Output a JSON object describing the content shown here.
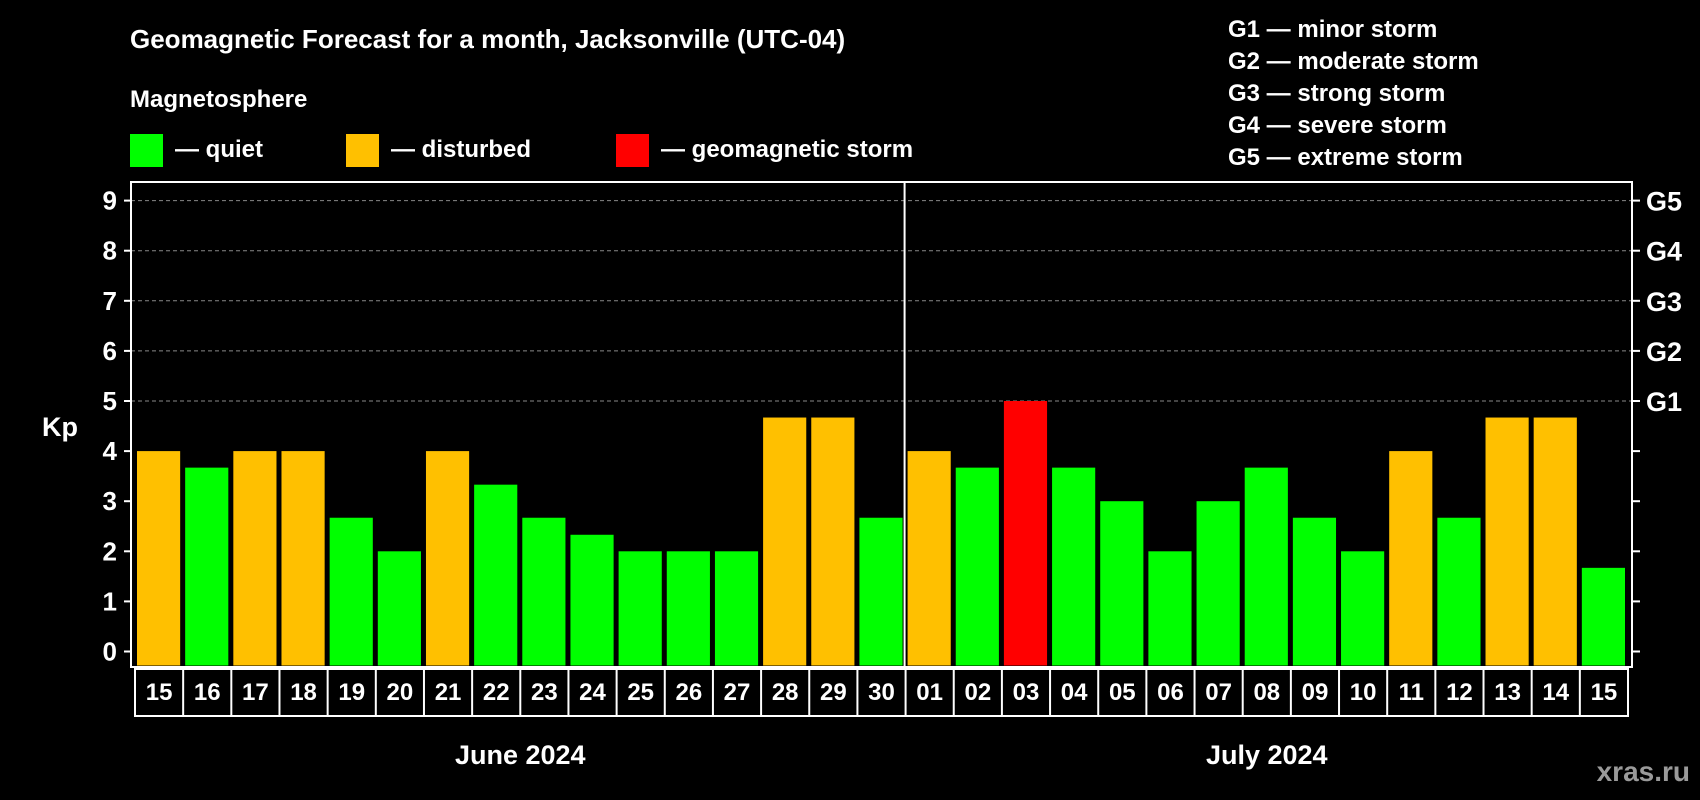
{
  "header": {
    "title": "Geomagnetic Forecast for a month, Jacksonville (UTC-04)",
    "subtitle": "Magnetosphere",
    "legend": [
      {
        "label": "— quiet",
        "color": "#00ff00"
      },
      {
        "label": "— disturbed",
        "color": "#ffc000"
      },
      {
        "label": "— geomagnetic storm",
        "color": "#ff0000"
      }
    ],
    "storm_scale": [
      "G1 — minor storm",
      "G2 — moderate storm",
      "G3 — strong storm",
      "G4 — severe storm",
      "G5 — extreme storm"
    ]
  },
  "watermark": "xras.ru",
  "chart_data": {
    "type": "bar",
    "title": "Geomagnetic Forecast for a month, Jacksonville (UTC-04)",
    "ylabel": "Kp",
    "ylim": [
      0,
      9
    ],
    "yticks": [
      "0",
      "1",
      "2",
      "3",
      "4",
      "5",
      "6",
      "7",
      "8",
      "9"
    ],
    "right_ticks": [
      {
        "kp": 5,
        "label": "G1"
      },
      {
        "kp": 6,
        "label": "G2"
      },
      {
        "kp": 7,
        "label": "G3"
      },
      {
        "kp": 8,
        "label": "G4"
      },
      {
        "kp": 9,
        "label": "G5"
      }
    ],
    "grid": "dashed horizontal at Kp 5-9",
    "months": [
      {
        "label": "June 2024",
        "count": 16
      },
      {
        "label": "July 2024",
        "count": 15
      }
    ],
    "categories": [
      "15",
      "16",
      "17",
      "18",
      "19",
      "20",
      "21",
      "22",
      "23",
      "24",
      "25",
      "26",
      "27",
      "28",
      "29",
      "30",
      "01",
      "02",
      "03",
      "04",
      "05",
      "06",
      "07",
      "08",
      "09",
      "10",
      "11",
      "12",
      "13",
      "14",
      "15"
    ],
    "values": [
      4,
      3.67,
      4,
      4,
      2.67,
      2,
      4,
      3.33,
      2.67,
      2.33,
      2,
      2,
      2,
      4.67,
      4.67,
      2.67,
      4,
      3.67,
      5,
      3.67,
      3,
      2,
      3,
      3.67,
      2.67,
      2,
      4,
      2.67,
      4.67,
      4.67,
      1.67
    ],
    "status": [
      "disturbed",
      "quiet",
      "disturbed",
      "disturbed",
      "quiet",
      "quiet",
      "disturbed",
      "quiet",
      "quiet",
      "quiet",
      "quiet",
      "quiet",
      "quiet",
      "disturbed",
      "disturbed",
      "quiet",
      "disturbed",
      "quiet",
      "storm",
      "quiet",
      "quiet",
      "quiet",
      "quiet",
      "quiet",
      "quiet",
      "quiet",
      "disturbed",
      "quiet",
      "disturbed",
      "disturbed",
      "quiet"
    ],
    "colors": {
      "quiet": "#00ff00",
      "disturbed": "#ffc000",
      "storm": "#ff0000"
    }
  }
}
